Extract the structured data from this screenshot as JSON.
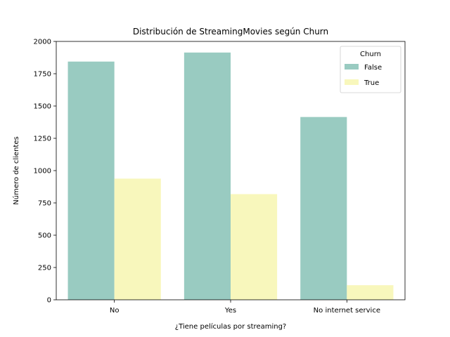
{
  "chart_data": {
    "type": "bar",
    "title": "Distribución de StreamingMovies según Churn",
    "xlabel": "¿Tiene películas por streaming?",
    "ylabel": "Número de clientes",
    "categories": [
      "No",
      "Yes",
      "No internet service"
    ],
    "series": [
      {
        "name": "False",
        "values": [
          1844,
          1914,
          1415
        ],
        "color": "#99cbc1"
      },
      {
        "name": "True",
        "values": [
          938,
          818,
          113
        ],
        "color": "#f8f7bc"
      }
    ],
    "ylim": [
      0,
      2000
    ],
    "yticks": [
      0,
      250,
      500,
      750,
      1000,
      1250,
      1500,
      1750,
      2000
    ],
    "legend": {
      "title": "Churn",
      "placement": "top-right"
    },
    "grid": false
  }
}
